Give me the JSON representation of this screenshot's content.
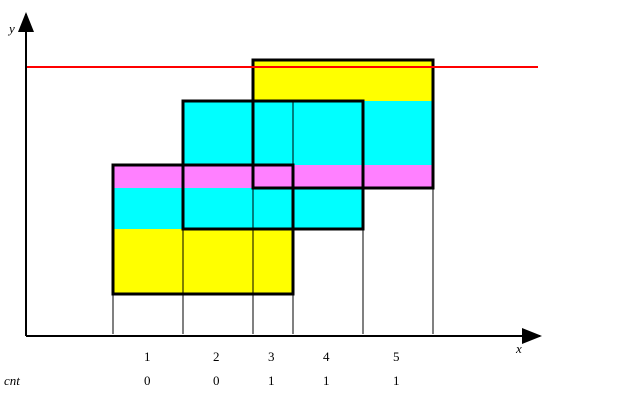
{
  "axes": {
    "x_label": "x",
    "y_label": "y"
  },
  "columns": {
    "indices": [
      "1",
      "2",
      "3",
      "4",
      "5"
    ],
    "row_label": "cnt",
    "cnt_values": [
      "0",
      "0",
      "1",
      "1",
      "1"
    ]
  },
  "colors": {
    "yellow": "#ffff00",
    "cyan": "#00ffff",
    "magenta": "#ff80ff",
    "scan_line": "#ff0000",
    "outline": "#000000"
  },
  "shapes": {
    "rectangle_count": 3,
    "scan_line": "horizontal red sweep line at top"
  }
}
